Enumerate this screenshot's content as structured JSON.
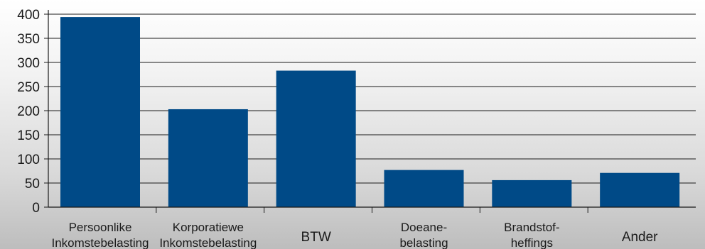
{
  "chart_data": {
    "type": "bar",
    "title": "",
    "xlabel": "",
    "ylabel": "",
    "ylim": [
      0,
      400
    ],
    "yticks": [
      0,
      50,
      100,
      150,
      200,
      250,
      300,
      350,
      400
    ],
    "grid": true,
    "bar_color": "#004a87",
    "categories": [
      [
        "Persoonlike",
        "Inkomstebelasting"
      ],
      [
        "Korporatiewe",
        "Inkomstebelasting"
      ],
      [
        "BTW"
      ],
      [
        "Doeane-",
        "belasting"
      ],
      [
        "Brandstof-",
        "heffings"
      ],
      [
        "Ander"
      ]
    ],
    "values": [
      394,
      203,
      283,
      77,
      56,
      71
    ]
  }
}
